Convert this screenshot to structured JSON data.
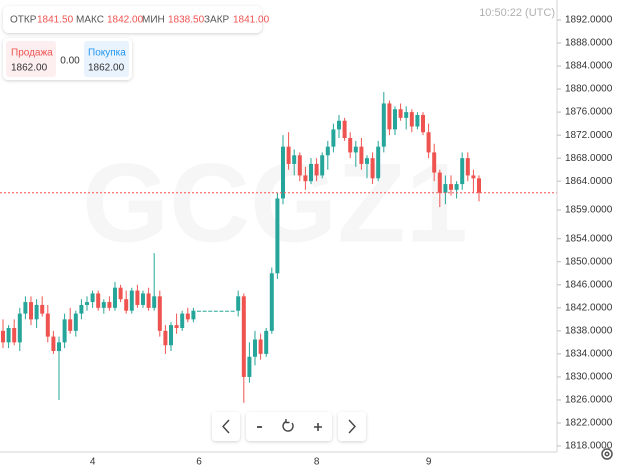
{
  "chart_data": {
    "type": "candlestick",
    "watermark": "GCGZ1",
    "time": "10:50:22 (UTC)",
    "ohlc_legend": [
      {
        "label": "ОТКР",
        "value": "1841.50"
      },
      {
        "label": "МАКС",
        "value": "1842.00"
      },
      {
        "label": "МИН",
        "value": "1838.50"
      },
      {
        "label": "ЗАКР",
        "value": "1841.00"
      }
    ],
    "quote": {
      "sell": {
        "label": "Продажа",
        "value": "1862.00"
      },
      "spread": "0.00",
      "buy": {
        "label": "Покупка",
        "value": "1862.00"
      }
    },
    "up_color": "#26a69a",
    "down_color": "#ef5350",
    "price_line": 1862,
    "categories": [
      null,
      null,
      null,
      null,
      null,
      null,
      null,
      null,
      null,
      null,
      null,
      null,
      null,
      null,
      null,
      null,
      "4",
      null,
      null,
      null,
      null,
      null,
      null,
      null,
      null,
      null,
      null,
      null,
      null,
      null,
      null,
      null,
      null,
      null,
      null,
      "6",
      null,
      null,
      null,
      null,
      null,
      null,
      null,
      null,
      null,
      null,
      null,
      null,
      null,
      null,
      null,
      null,
      null,
      null,
      null,
      null,
      "8",
      null,
      null,
      null,
      null,
      null,
      null,
      null,
      null,
      null,
      null,
      null,
      null,
      null,
      null,
      null,
      null,
      null,
      null,
      null,
      "9",
      null,
      null,
      null,
      null,
      null,
      null,
      null,
      null,
      null
    ],
    "open": [
      1838,
      1836,
      1838.5,
      1836,
      1841,
      1843,
      1840,
      1842.5,
      1841,
      1837,
      1834.5,
      1836,
      1840,
      1838,
      1841,
      1842.5,
      1843,
      1844.5,
      1842,
      1843,
      1842,
      1845.5,
      1843.5,
      1841.5,
      1845,
      1842.5,
      1844.5,
      1842,
      1844,
      1838,
      1835.5,
      1839,
      1838.5,
      1841,
      1840,
      1841.5,
      1841.5,
      1841.5,
      1841.5,
      1841.5,
      1841.5,
      1841.5,
      1841.5,
      1844,
      1830,
      1833.5,
      1836.5,
      1834,
      1838,
      1848,
      1861,
      1870,
      1867,
      1868.5,
      1865,
      1864,
      1867,
      1865,
      1868.5,
      1870,
      1873,
      1874.5,
      1871.5,
      1869,
      1870,
      1867,
      1868,
      1864.5,
      1870,
      1877.5,
      1873,
      1876.5,
      1875,
      1876,
      1873.5,
      1875.5,
      1872.5,
      1869,
      1865.5,
      1862,
      1863.5,
      1862.5,
      1863.5,
      1868,
      1865,
      1864.5
    ],
    "high": [
      1840,
      1839,
      1840,
      1842,
      1844,
      1844,
      1843.5,
      1844,
      1842.5,
      1838,
      1837,
      1841,
      1842,
      1841.5,
      1843.5,
      1844,
      1845,
      1845,
      1843.5,
      1844,
      1846.5,
      1846,
      1845,
      1845.5,
      1846,
      1845,
      1845.5,
      1851.5,
      1845,
      1839,
      1839.5,
      1841,
      1841.5,
      1842,
      1842,
      1841.5,
      1841.5,
      1841.5,
      1841.5,
      1841.5,
      1841.5,
      1841.5,
      1845,
      1844.5,
      1836,
      1838,
      1837.5,
      1838.5,
      1849,
      1862,
      1872,
      1872.5,
      1869.5,
      1869,
      1866.5,
      1868,
      1868,
      1869,
      1871,
      1874,
      1875.5,
      1875,
      1872.5,
      1871,
      1871.5,
      1868.5,
      1869,
      1871,
      1879.5,
      1878,
      1877,
      1877.5,
      1877,
      1876.5,
      1876,
      1876,
      1874,
      1870.5,
      1866,
      1865,
      1865,
      1864,
      1869,
      1869,
      1866,
      1865
    ],
    "low": [
      1835,
      1835,
      1835.5,
      1834.5,
      1840,
      1839,
      1838.5,
      1840.5,
      1836,
      1834,
      1826,
      1835,
      1837.5,
      1837,
      1840,
      1841.5,
      1842,
      1841.5,
      1841,
      1841.5,
      1841.5,
      1843,
      1841,
      1841,
      1842,
      1842,
      1841.5,
      1841.5,
      1837,
      1834,
      1834.5,
      1837.5,
      1838,
      1839.5,
      1839.5,
      1841.5,
      1841.5,
      1841.5,
      1841.5,
      1841.5,
      1841.5,
      1841.5,
      1840.5,
      1825.5,
      1829,
      1832,
      1833,
      1833.5,
      1837.5,
      1847,
      1860,
      1866,
      1865,
      1864,
      1862.5,
      1863.5,
      1864,
      1864.5,
      1866,
      1869,
      1871.5,
      1871,
      1868,
      1866.5,
      1866,
      1864.5,
      1863.5,
      1864,
      1869,
      1872,
      1872,
      1874.5,
      1873,
      1872.5,
      1873,
      1872,
      1868,
      1864,
      1859.5,
      1860,
      1861.5,
      1861,
      1862.5,
      1864,
      1862,
      1860.5
    ],
    "close": [
      1836,
      1838.5,
      1836,
      1841,
      1843,
      1840,
      1842.5,
      1841,
      1837,
      1834.5,
      1836,
      1840,
      1838,
      1841,
      1842.5,
      1843,
      1844.5,
      1842,
      1843,
      1842,
      1845.5,
      1843.5,
      1841.5,
      1845,
      1842.5,
      1844.5,
      1842,
      1844,
      1838,
      1835.5,
      1839,
      1838.5,
      1841,
      1840,
      1841.5,
      1841.5,
      1841.5,
      1841.5,
      1841.5,
      1841.5,
      1841.5,
      1841.5,
      1844,
      1830,
      1833.5,
      1836.5,
      1834,
      1838,
      1848,
      1861,
      1870,
      1867,
      1868.5,
      1865,
      1864,
      1867,
      1865,
      1868.5,
      1870,
      1873,
      1874.5,
      1871.5,
      1869,
      1870,
      1867,
      1868,
      1864.5,
      1870,
      1877.5,
      1873,
      1876.5,
      1875,
      1876,
      1873.5,
      1875.5,
      1872.5,
      1869,
      1865.5,
      1862,
      1863.5,
      1862.5,
      1863.5,
      1868,
      1865,
      1864.5,
      1862
    ],
    "ylim": [
      1818,
      1892
    ],
    "yticks": [
      {
        "value": 1892,
        "label": "1892.0000"
      },
      {
        "value": 1888,
        "label": "1888.0000"
      },
      {
        "value": 1884,
        "label": "1884.0000"
      },
      {
        "value": 1880,
        "label": "1880.0000"
      },
      {
        "value": 1876,
        "label": "1876.0000"
      },
      {
        "value": 1872,
        "label": "1872.0000"
      },
      {
        "value": 1868,
        "label": "1868.0000"
      },
      {
        "value": 1864,
        "label": "1864.0000"
      },
      {
        "value": 1859,
        "label": "1859.0000"
      },
      {
        "value": 1854,
        "label": "1854.0000"
      },
      {
        "value": 1850,
        "label": "1850.0000"
      },
      {
        "value": 1846,
        "label": "1846.0000"
      },
      {
        "value": 1842,
        "label": "1842.0000"
      },
      {
        "value": 1838,
        "label": "1838.0000"
      },
      {
        "value": 1834,
        "label": "1834.0000"
      },
      {
        "value": 1830,
        "label": "1830.0000"
      },
      {
        "value": 1826,
        "label": "1826.0000"
      },
      {
        "value": 1822,
        "label": "1822.0000"
      },
      {
        "value": 1818,
        "label": "1818.0000"
      }
    ],
    "grid": false
  }
}
